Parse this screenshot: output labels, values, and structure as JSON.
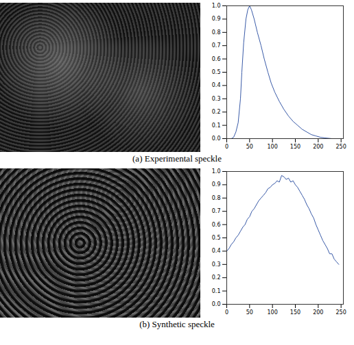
{
  "chart_data": [
    {
      "type": "line",
      "title": "(a) Experimental speckle",
      "color": "#3a5ba8",
      "x": [
        0,
        10,
        15,
        20,
        25,
        30,
        33,
        37,
        42,
        46,
        50,
        54,
        60,
        67,
        75,
        82,
        90,
        97,
        105,
        115,
        125,
        135,
        145,
        155,
        165,
        175,
        185,
        195,
        205,
        215,
        230,
        245,
        255
      ],
      "values": [
        0,
        0,
        0.01,
        0.05,
        0.12,
        0.3,
        0.5,
        0.72,
        0.9,
        0.97,
        1.0,
        0.97,
        0.9,
        0.8,
        0.7,
        0.6,
        0.5,
        0.42,
        0.35,
        0.28,
        0.22,
        0.17,
        0.13,
        0.1,
        0.07,
        0.05,
        0.03,
        0.02,
        0.01,
        0.005,
        0,
        0,
        0
      ],
      "xlim": [
        0,
        255
      ],
      "xticks": [
        0,
        50,
        100,
        150,
        200,
        250
      ],
      "ylim": [
        0,
        1
      ],
      "yticks": [
        {
          "value": 0,
          "label": "0.0"
        },
        0.1,
        0.2,
        0.3,
        0.4,
        0.5,
        0.6,
        0.7,
        0.8,
        0.9,
        {
          "value": 1,
          "label": "1.0"
        }
      ],
      "grid": false
    },
    {
      "type": "line",
      "title": "(b) Synthetic speckle",
      "color": "#3a5ba8",
      "x": [
        0,
        5,
        10,
        15,
        20,
        25,
        30,
        35,
        40,
        45,
        50,
        55,
        60,
        65,
        70,
        75,
        80,
        85,
        90,
        95,
        100,
        105,
        110,
        115,
        120,
        125,
        130,
        135,
        140,
        145,
        150,
        155,
        160,
        165,
        170,
        175,
        180,
        185,
        190,
        195,
        200,
        205,
        210,
        215,
        220,
        225,
        230,
        235,
        240,
        245
      ],
      "values": [
        0.4,
        0.42,
        0.45,
        0.47,
        0.5,
        0.52,
        0.55,
        0.58,
        0.6,
        0.64,
        0.66,
        0.7,
        0.72,
        0.75,
        0.78,
        0.8,
        0.82,
        0.84,
        0.87,
        0.88,
        0.9,
        0.91,
        0.93,
        0.92,
        0.97,
        0.96,
        0.94,
        0.95,
        0.92,
        0.93,
        0.9,
        0.88,
        0.85,
        0.82,
        0.79,
        0.75,
        0.72,
        0.68,
        0.65,
        0.6,
        0.56,
        0.52,
        0.48,
        0.45,
        0.42,
        0.38,
        0.38,
        0.34,
        0.32,
        0.3
      ],
      "xlim": [
        0,
        255
      ],
      "xticks": [
        0,
        50,
        100,
        150,
        200,
        250
      ],
      "ylim": [
        0,
        1
      ],
      "yticks": [
        {
          "value": 0,
          "label": "0.0"
        },
        0.1,
        0.2,
        0.3,
        0.4,
        0.5,
        0.6,
        0.7,
        0.8,
        0.9,
        {
          "value": 1,
          "label": "1.0"
        }
      ],
      "grid": false
    }
  ]
}
